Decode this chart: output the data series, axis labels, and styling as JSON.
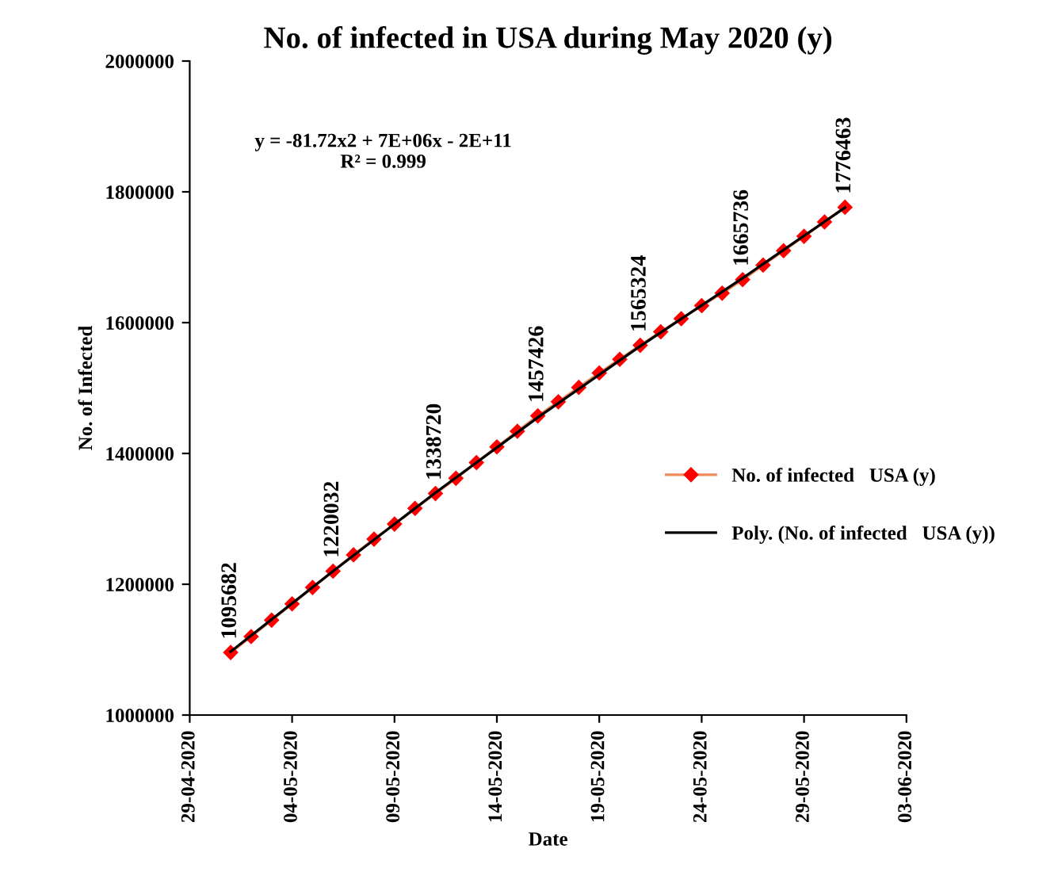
{
  "chart_data": {
    "type": "line",
    "title": "No. of infected in USA during May 2020 (y)",
    "xlabel": "Date",
    "ylabel": "No. of Infected",
    "annotations": [
      "y = -81.72x2 + 7E+06x - 2E+11\nR² = 0.999"
    ],
    "x": [
      "2020-05-01",
      "2020-05-02",
      "2020-05-03",
      "2020-05-04",
      "2020-05-05",
      "2020-05-06",
      "2020-05-07",
      "2020-05-08",
      "2020-05-09",
      "2020-05-10",
      "2020-05-11",
      "2020-05-12",
      "2020-05-13",
      "2020-05-14",
      "2020-05-15",
      "2020-05-16",
      "2020-05-17",
      "2020-05-18",
      "2020-05-19",
      "2020-05-20",
      "2020-05-21",
      "2020-05-22",
      "2020-05-23",
      "2020-05-24",
      "2020-05-25",
      "2020-05-26",
      "2020-05-27",
      "2020-05-28",
      "2020-05-29",
      "2020-05-30",
      "2020-05-31"
    ],
    "series": [
      {
        "name": "No. of infected   USA (y)",
        "color": "#ff0000",
        "marker": "diamond",
        "values": [
          1095682,
          1120000,
          1145000,
          1170000,
          1195000,
          1220032,
          1245000,
          1269000,
          1292000,
          1316000,
          1338720,
          1362000,
          1386000,
          1410000,
          1434000,
          1457426,
          1479000,
          1501000,
          1523000,
          1544000,
          1565324,
          1586000,
          1606000,
          1626000,
          1645000,
          1665736,
          1688000,
          1710000,
          1732000,
          1754000,
          1776463
        ],
        "value_labels": [
          "1095682",
          null,
          null,
          null,
          null,
          "1220032",
          null,
          null,
          null,
          null,
          "1338720",
          null,
          null,
          null,
          null,
          "1457426",
          null,
          null,
          null,
          null,
          "1565324",
          null,
          null,
          null,
          null,
          "1665736",
          null,
          null,
          null,
          null,
          "1776463"
        ]
      },
      {
        "name": "Poly. (No. of infected   USA (y))",
        "color": "#000000",
        "type": "line",
        "marker": "none",
        "x": [
          "2020-05-01",
          "2020-05-06",
          "2020-05-11",
          "2020-05-16",
          "2020-05-21",
          "2020-05-26",
          "2020-05-31"
        ],
        "values": [
          1097000,
          1220000,
          1340000,
          1455000,
          1564000,
          1668000,
          1776000
        ]
      }
    ],
    "xlim": [
      "2020-04-29",
      "2020-06-03"
    ],
    "xticks": [
      {
        "value": "2020-04-29",
        "label": "29-04-2020"
      },
      {
        "value": "2020-05-04",
        "label": "04-05-2020"
      },
      {
        "value": "2020-05-09",
        "label": "09-05-2020"
      },
      {
        "value": "2020-05-14",
        "label": "14-05-2020"
      },
      {
        "value": "2020-05-19",
        "label": "19-05-2020"
      },
      {
        "value": "2020-05-24",
        "label": "24-05-2020"
      },
      {
        "value": "2020-05-29",
        "label": "29-05-2020"
      },
      {
        "value": "2020-06-03",
        "label": "03-06-2020"
      }
    ],
    "ylim": [
      1000000,
      2000000
    ],
    "yticks": [
      1000000,
      1200000,
      1400000,
      1600000,
      1800000,
      2000000
    ],
    "grid": false,
    "legend": "right",
    "line_style": "solid"
  }
}
